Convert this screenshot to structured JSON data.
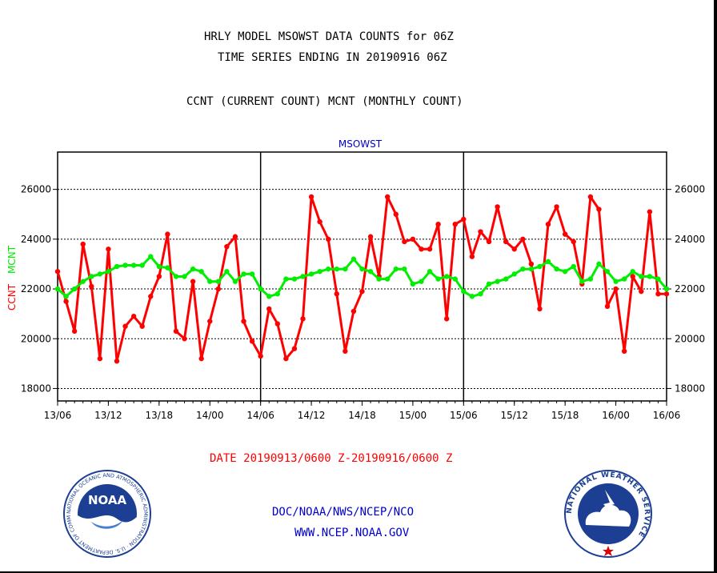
{
  "header": {
    "line1": "HRLY MODEL MSOWST DATA COUNTS for 06Z",
    "line2": "TIME SERIES ENDING IN 20190916 06Z",
    "line3": "CCNT (CURRENT COUNT) MCNT (MONTHLY COUNT)"
  },
  "footer": {
    "date_range": "DATE 20190913/0600 Z-20190916/0600 Z",
    "org": "DOC/NOAA/NWS/NCEP/NCO",
    "url": "WWW.NCEP.NOAA.GOV"
  },
  "logos": {
    "noaa": {
      "text": "NOAA",
      "ring": "NATIONAL OCEANIC AND ATMOSPHERIC ADMINISTRATION · U.S. DEPARTMENT OF COMMERCE"
    },
    "nws": {
      "ring": "NATIONAL WEATHER SERVICE"
    }
  },
  "colors": {
    "ccnt": "#ff0000",
    "mcnt": "#00ee00",
    "title": "#0000cc",
    "footer_date": "#ff0000",
    "footer_link": "#0000cc"
  },
  "chart_data": {
    "type": "line",
    "title": "MSOWST",
    "ylabel_ccnt": "CCNT",
    "ylabel_mcnt": "MCNT",
    "ylim": [
      17500,
      27500
    ],
    "yticks": [
      18000,
      20000,
      22000,
      24000,
      26000
    ],
    "x_tick_labels": [
      "13/06",
      "13/12",
      "13/18",
      "14/00",
      "14/06",
      "14/12",
      "14/18",
      "15/00",
      "15/06",
      "15/12",
      "15/18",
      "16/00",
      "16/06"
    ],
    "hours_per_label": 6,
    "day_boundaries": [
      "14/06",
      "15/06"
    ],
    "grid": true,
    "series": [
      {
        "name": "CCNT",
        "color": "#ff0000",
        "values": [
          22700,
          21500,
          20300,
          23800,
          22100,
          19200,
          23600,
          19100,
          20500,
          20900,
          20500,
          21700,
          22500,
          24200,
          20300,
          20000,
          22300,
          19200,
          20700,
          22000,
          23700,
          24100,
          20700,
          19900,
          19300,
          21200,
          20600,
          19200,
          19600,
          20800,
          25700,
          24700,
          24000,
          21800,
          19500,
          21100,
          21900,
          24100,
          22500,
          25700,
          25000,
          23900,
          24000,
          23600,
          23600,
          24600,
          20800,
          24600,
          24800,
          23300,
          24300,
          23900,
          25300,
          23900,
          23600,
          24000,
          23000,
          21200,
          24600,
          25300,
          24200,
          23900,
          22200,
          25700,
          25200,
          21300,
          22000,
          19500,
          22500,
          21900,
          25100,
          21800,
          21800
        ]
      },
      {
        "name": "MCNT",
        "color": "#00ee00",
        "values": [
          22000,
          21700,
          22000,
          22300,
          22500,
          22600,
          22700,
          22900,
          22950,
          22950,
          22950,
          23300,
          22900,
          22850,
          22500,
          22500,
          22800,
          22700,
          22300,
          22300,
          22700,
          22300,
          22600,
          22600,
          22000,
          21700,
          21800,
          22400,
          22400,
          22500,
          22600,
          22700,
          22800,
          22800,
          22800,
          23200,
          22800,
          22700,
          22400,
          22400,
          22800,
          22800,
          22200,
          22300,
          22700,
          22400,
          22500,
          22400,
          21900,
          21700,
          21800,
          22200,
          22300,
          22400,
          22600,
          22800,
          22800,
          22900,
          23100,
          22800,
          22700,
          22900,
          22300,
          22400,
          23000,
          22700,
          22300,
          22400,
          22700,
          22500,
          22500,
          22400,
          22000
        ]
      }
    ]
  }
}
